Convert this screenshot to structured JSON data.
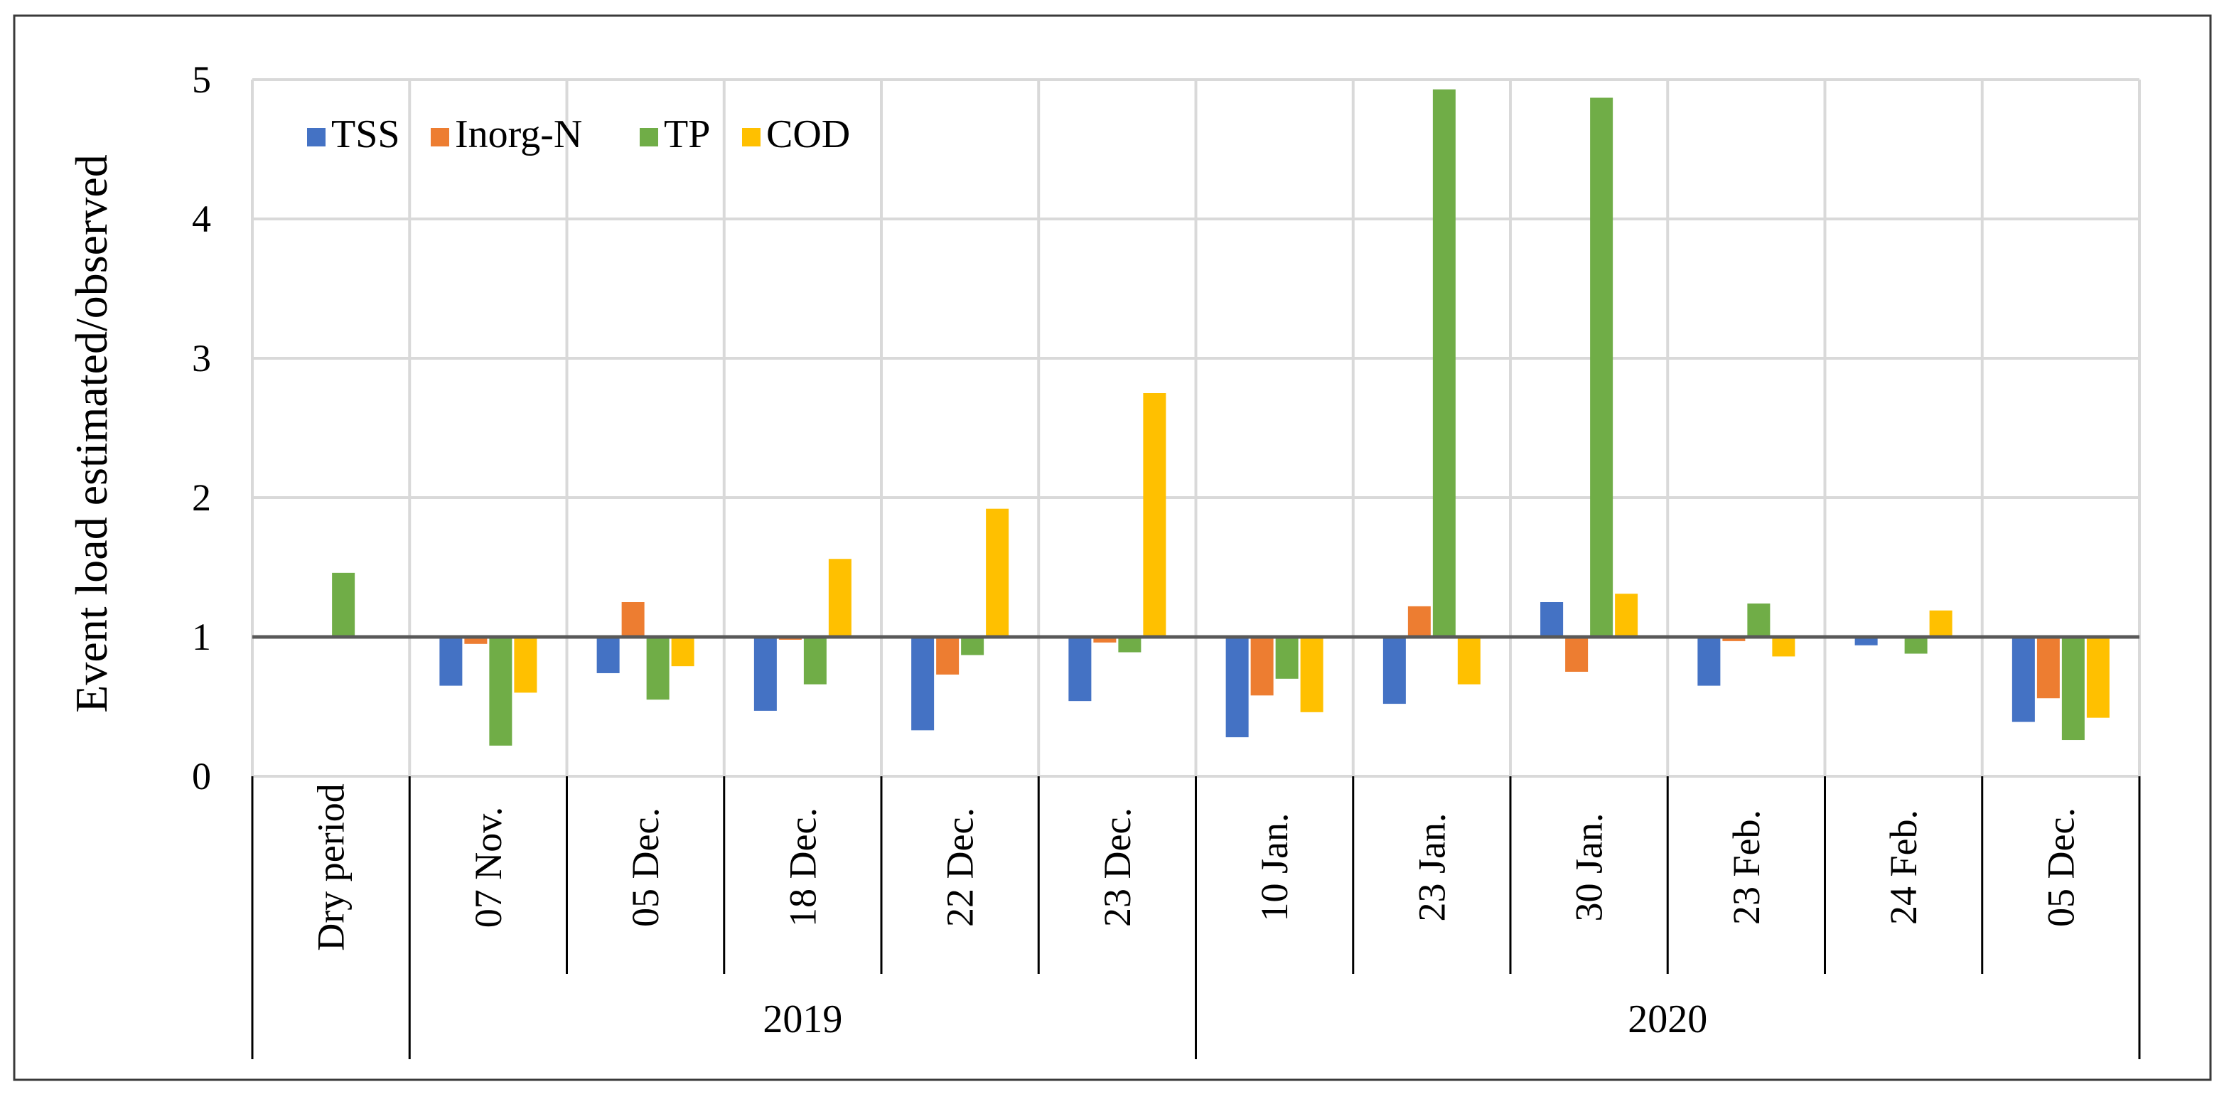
{
  "chart_data": {
    "type": "bar",
    "ylabel": "Event load estimated/observed",
    "ylim": [
      0,
      5
    ],
    "y_ticks": [
      "0",
      "1",
      "2",
      "3",
      "4",
      "5"
    ],
    "baseline": 1,
    "grid": true,
    "legend_position": "top-left",
    "categories": [
      "Dry period",
      "07 Nov.",
      "05 Dec.",
      "18 Dec.",
      "22 Dec.",
      "23 Dec.",
      "10 Jan.",
      "23 Jan.",
      "30 Jan.",
      "23 Feb.",
      "24 Feb.",
      "05 Dec."
    ],
    "groups": [
      {
        "label": "2019",
        "start": 1,
        "end": 5
      },
      {
        "label": "2020",
        "start": 6,
        "end": 11
      }
    ],
    "series": [
      {
        "name": "TSS",
        "color": "#4472C4",
        "values": [
          null,
          0.65,
          0.74,
          0.47,
          0.33,
          0.54,
          0.28,
          0.52,
          1.25,
          0.65,
          0.94,
          0.39
        ]
      },
      {
        "name": "Inorg-N",
        "color": "#ED7D31",
        "values": [
          null,
          0.95,
          1.25,
          0.98,
          0.73,
          0.96,
          0.58,
          1.22,
          0.75,
          0.97,
          null,
          0.56
        ]
      },
      {
        "name": "TP",
        "color": "#70AD47",
        "values": [
          1.46,
          0.22,
          0.55,
          0.66,
          0.87,
          0.89,
          0.7,
          4.93,
          4.87,
          1.24,
          0.88,
          0.26
        ]
      },
      {
        "name": "COD",
        "color": "#FFC000",
        "values": [
          null,
          0.6,
          0.79,
          1.56,
          1.92,
          2.75,
          0.46,
          0.66,
          1.31,
          0.86,
          1.19,
          0.42
        ]
      }
    ]
  }
}
